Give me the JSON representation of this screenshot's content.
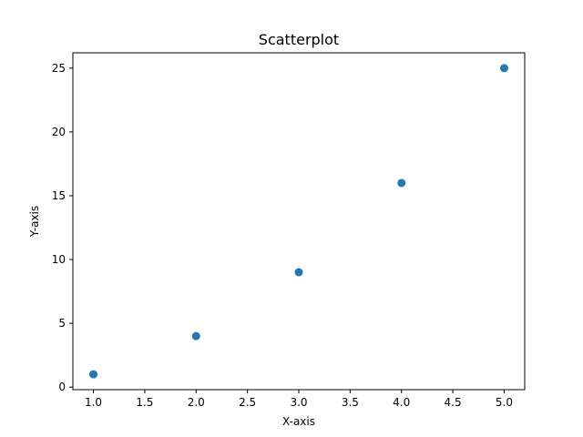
{
  "chart_data": {
    "type": "scatter",
    "title": "Scatterplot",
    "xlabel": "X-axis",
    "ylabel": "Y-axis",
    "xlim": [
      0.8,
      5.2
    ],
    "ylim": [
      -0.2,
      26.2
    ],
    "x_ticks": [
      1.0,
      1.5,
      2.0,
      2.5,
      3.0,
      3.5,
      4.0,
      4.5,
      5.0
    ],
    "x_tick_labels": [
      "1.0",
      "1.5",
      "2.0",
      "2.5",
      "3.0",
      "3.5",
      "4.0",
      "4.5",
      "5.0"
    ],
    "y_ticks": [
      0,
      5,
      10,
      15,
      20,
      25
    ],
    "y_tick_labels": [
      "0",
      "5",
      "10",
      "15",
      "20",
      "25"
    ],
    "grid": false,
    "legend": "none",
    "marker_color": "#1f77b4",
    "series": [
      {
        "x": [
          1,
          2,
          3,
          4,
          5
        ],
        "y": [
          1,
          4,
          9,
          16,
          25
        ]
      }
    ]
  }
}
